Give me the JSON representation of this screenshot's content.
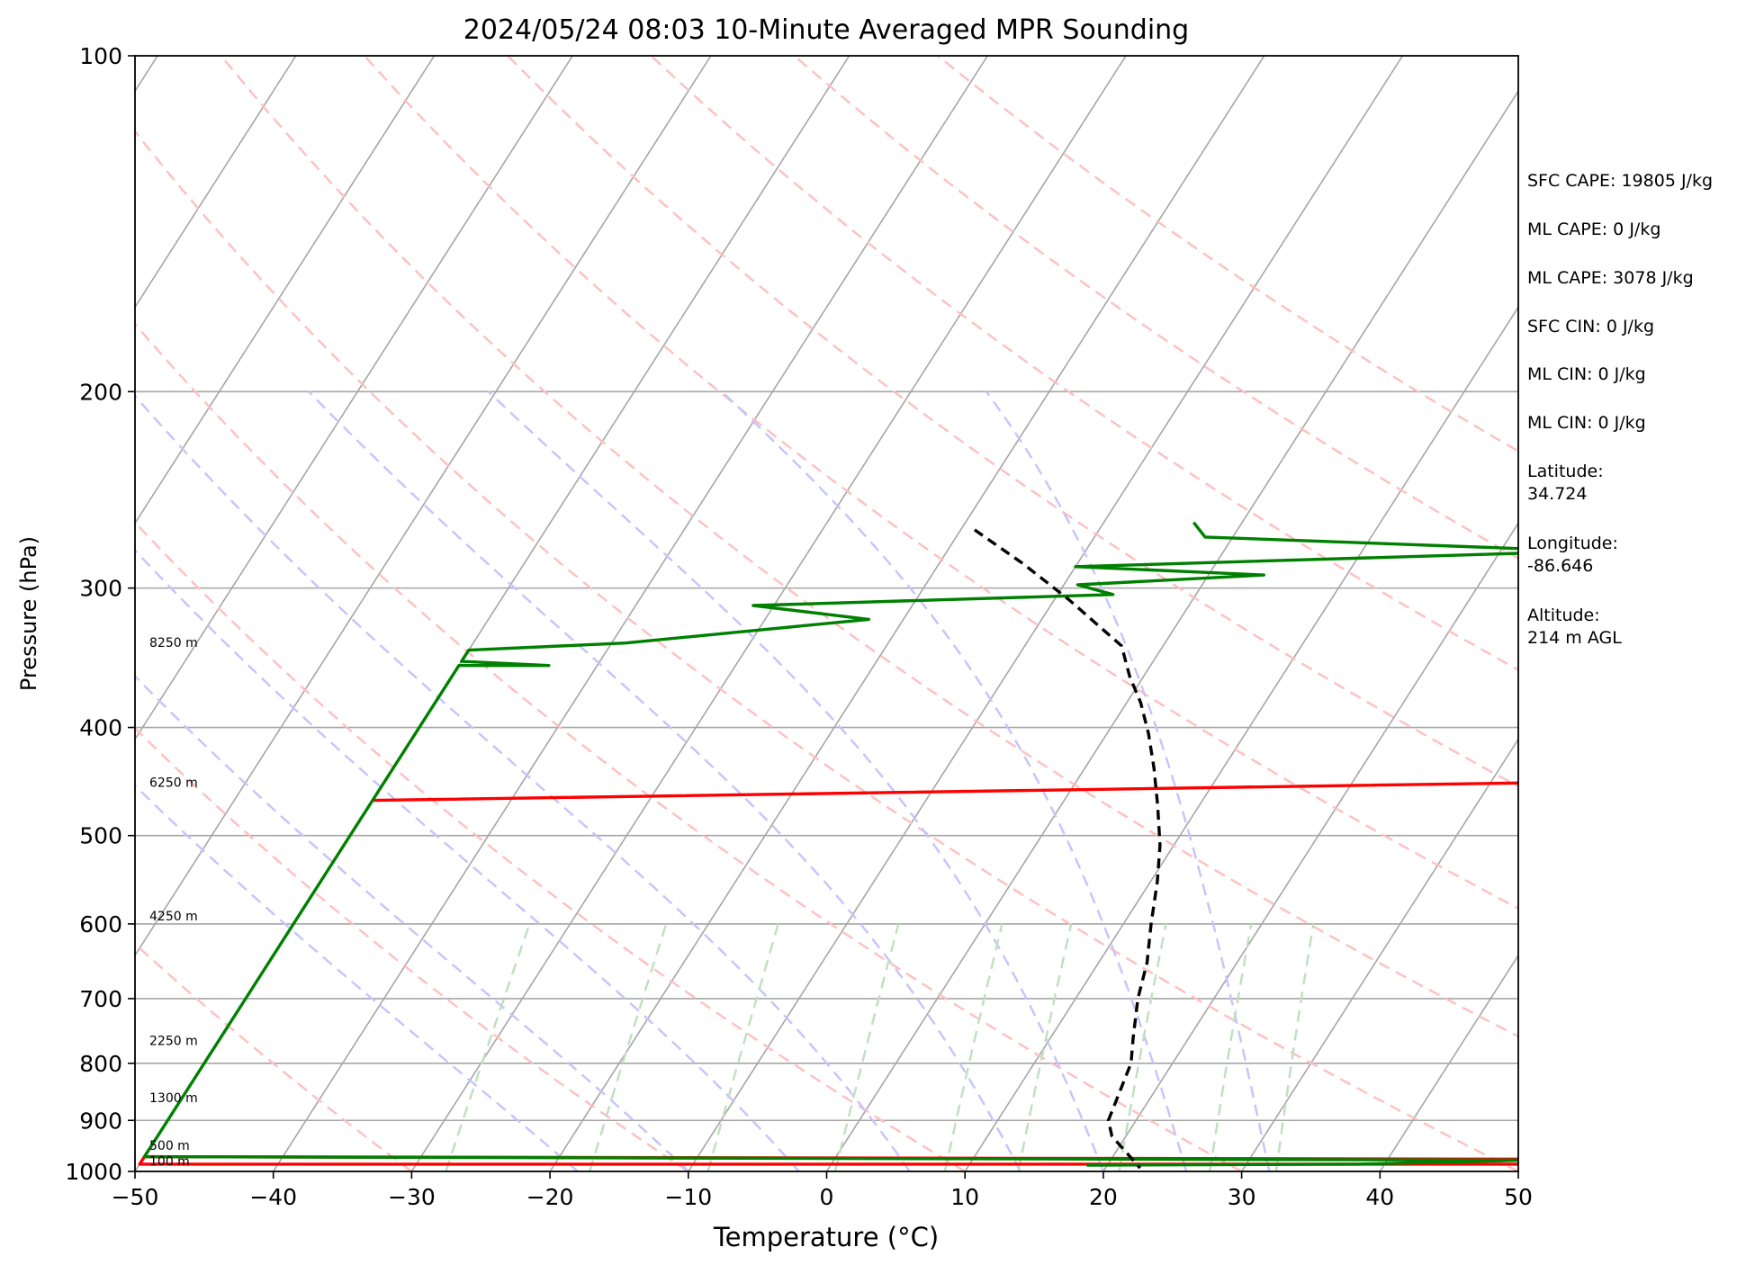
{
  "chart_data": {
    "type": "line",
    "title": "2024/05/24 08:03 10-Minute Averaged MPR Sounding",
    "xlabel": "Temperature (°C)",
    "ylabel": "Pressure (hPa)",
    "xlim": [
      -50,
      50
    ],
    "ylim": [
      1000,
      100
    ],
    "y_scale": "log",
    "x_ticks": [
      "−50",
      "−40",
      "−30",
      "−20",
      "−10",
      "0",
      "10",
      "20",
      "30",
      "40",
      "50"
    ],
    "y_ticks": [
      "100",
      "200",
      "300",
      "400",
      "500",
      "600",
      "700",
      "800",
      "900",
      "1000"
    ],
    "grid": true,
    "series": [
      {
        "role": "temperature",
        "color": "#ff0000",
        "points": [
          [
            -50,
            465
          ],
          [
            50,
            445
          ],
          [
            50,
            975
          ],
          [
            -50,
            970
          ],
          [
            -50,
            985
          ],
          [
            50,
            985
          ]
        ]
      },
      {
        "role": "dewpoint",
        "color": "#008000",
        "points": [
          [
            -3.5,
            262
          ],
          [
            -2,
            270
          ],
          [
            26.5,
            278
          ],
          [
            -10,
            287
          ],
          [
            4,
            292
          ],
          [
            -9,
            298
          ],
          [
            -6,
            304
          ],
          [
            -31.5,
            311
          ],
          [
            -22.5,
            320
          ],
          [
            -39,
            336
          ],
          [
            -50,
            341
          ],
          [
            -50,
            349
          ],
          [
            -43.5,
            352
          ],
          [
            -50,
            352
          ],
          [
            -50,
            970
          ],
          [
            50,
            977
          ],
          [
            38,
            985
          ],
          [
            18.5,
            987
          ]
        ]
      },
      {
        "role": "parcel-profile",
        "color": "#000000",
        "style": "dashed",
        "points": [
          [
            -19,
            266
          ],
          [
            -14,
            285
          ],
          [
            -9,
            307
          ],
          [
            -3,
            338
          ],
          [
            -1,
            360
          ],
          [
            1,
            380
          ],
          [
            3,
            405
          ],
          [
            5,
            435
          ],
          [
            7,
            470
          ],
          [
            9,
            510
          ],
          [
            10.5,
            550
          ],
          [
            12,
            600
          ],
          [
            13.5,
            650
          ],
          [
            14.5,
            700
          ],
          [
            16,
            760
          ],
          [
            17,
            800
          ],
          [
            18,
            900
          ],
          [
            19,
            930
          ],
          [
            22.5,
            993
          ]
        ]
      }
    ],
    "height_labels": [
      {
        "text": "8250 m",
        "p": 340
      },
      {
        "text": "6250 m",
        "p": 454
      },
      {
        "text": "4250 m",
        "p": 598
      },
      {
        "text": "2250 m",
        "p": 773
      },
      {
        "text": "1300 m",
        "p": 870
      },
      {
        "text": "500 m",
        "p": 960
      },
      {
        "text": "100 m",
        "p": 992
      }
    ],
    "background_lines": {
      "isotherm_color": "#a6a6a6",
      "dry_adiabat_color": "#ffbfbf",
      "moist_adiabat_color": "#c4c4ff",
      "mixing_ratio_color": "#bfe0bf"
    }
  },
  "info_panel": {
    "sfc_cape": "SFC CAPE: 19805 J/kg",
    "ml_cape_1": "ML CAPE: 0 J/kg",
    "ml_cape_2": "ML CAPE: 3078 J/kg",
    "sfc_cin": "SFC CIN: 0 J/kg",
    "ml_cin_1": "ML CIN: 0 J/kg",
    "ml_cin_2": "ML CIN: 0 J/kg",
    "latitude": "Latitude:\n34.724",
    "longitude": "Longitude:\n-86.646",
    "altitude": "Altitude:\n214 m AGL"
  }
}
